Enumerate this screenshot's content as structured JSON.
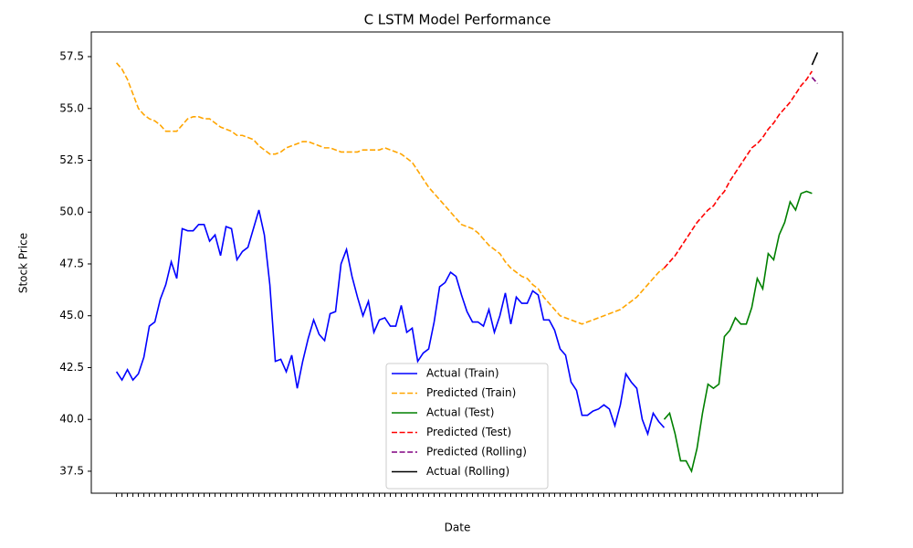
{
  "chart_data": {
    "type": "line",
    "title": "C LSTM Model Performance",
    "xlabel": "Date",
    "ylabel": "Stock Price",
    "legend": "lower center",
    "categories": [
      null,
      null,
      null,
      null,
      null,
      null,
      null,
      null,
      null,
      null,
      null,
      null,
      null,
      null,
      null,
      null,
      null,
      null,
      null,
      null,
      null,
      null,
      null,
      null,
      null,
      null,
      null,
      null,
      null,
      null,
      null,
      null,
      null,
      null,
      null,
      null,
      null,
      null,
      null,
      null,
      null,
      null,
      null,
      null,
      null,
      null,
      null,
      null,
      null,
      null,
      null,
      null,
      null,
      null,
      null,
      null,
      null,
      null,
      null,
      null,
      null,
      null,
      null,
      null,
      null,
      null,
      null,
      null,
      null,
      null,
      null,
      null,
      null,
      null,
      null,
      null,
      null,
      null,
      null,
      null,
      null,
      null,
      null,
      null,
      null,
      null,
      null,
      null,
      null,
      null,
      null,
      null,
      null,
      null,
      null,
      null,
      null,
      null,
      null,
      null,
      null,
      null,
      null,
      null,
      null,
      null,
      null,
      null,
      null,
      null,
      null,
      null,
      null,
      null,
      null,
      null,
      null,
      null,
      null,
      null,
      null,
      null,
      null,
      null,
      null,
      null,
      null,
      null,
      null
    ],
    "ylim": [
      36.44,
      58.69
    ],
    "yticks": [
      37.5,
      {
        "value": 40,
        "label": "40.0"
      },
      42.5,
      {
        "value": 45,
        "label": "45.0"
      },
      47.5,
      {
        "value": 50,
        "label": "50.0"
      },
      52.5,
      {
        "value": 55,
        "label": "55.0"
      },
      57.5
    ],
    "series": [
      {
        "name": "Actual (Train)",
        "color": "#0000ff",
        "linestyle": "solid",
        "values": [
          42.3,
          41.9,
          42.4,
          41.9,
          42.2,
          43.0,
          44.5,
          44.7,
          45.8,
          46.5,
          47.6,
          46.8,
          49.2,
          49.1,
          49.1,
          49.4,
          49.4,
          48.6,
          48.9,
          47.9,
          49.3,
          49.2,
          47.7,
          48.1,
          48.3,
          49.2,
          50.1,
          48.9,
          46.5,
          42.8,
          42.9,
          42.3,
          43.1,
          41.5,
          42.8,
          43.9,
          44.8,
          44.1,
          43.8,
          45.1,
          45.2,
          47.5,
          48.2,
          46.9,
          45.9,
          45.0,
          45.7,
          44.2,
          44.8,
          44.9,
          44.5,
          44.5,
          45.5,
          44.2,
          44.4,
          42.8,
          43.2,
          43.4,
          44.7,
          46.4,
          46.6,
          47.1,
          46.9,
          46.0,
          45.2,
          44.7,
          44.7,
          44.5,
          45.3,
          44.2,
          45.0,
          46.1,
          44.6,
          45.9,
          45.6,
          45.6,
          46.2,
          46.0,
          44.8,
          44.8,
          44.3,
          43.4,
          43.1,
          41.8,
          41.4,
          40.2,
          40.2,
          40.4,
          40.5,
          40.7,
          40.5,
          39.7,
          40.7,
          42.2,
          41.8,
          41.5,
          40.0,
          39.3,
          40.3,
          39.9,
          39.6,
          null,
          null,
          null,
          null,
          null,
          null,
          null,
          null,
          null,
          null,
          null,
          null,
          null,
          null,
          null,
          null,
          null,
          null,
          null,
          null,
          null,
          null,
          null,
          null,
          null,
          null,
          null,
          null
        ]
      },
      {
        "name": "Predicted (Train)",
        "color": "#ffa500",
        "linestyle": "dashed",
        "values": [
          57.2,
          56.9,
          56.4,
          55.7,
          55.0,
          54.7,
          54.5,
          54.4,
          54.2,
          53.9,
          53.9,
          53.9,
          54.2,
          54.5,
          54.6,
          54.6,
          54.5,
          54.5,
          54.3,
          54.1,
          54.0,
          53.9,
          53.7,
          53.7,
          53.6,
          53.5,
          53.2,
          53.0,
          52.8,
          52.8,
          52.9,
          53.1,
          53.2,
          53.3,
          53.4,
          53.4,
          53.3,
          53.2,
          53.1,
          53.1,
          53.0,
          52.9,
          52.9,
          52.9,
          52.9,
          53.0,
          53.0,
          53.0,
          53.0,
          53.1,
          53.0,
          52.9,
          52.8,
          52.6,
          52.4,
          52.0,
          51.6,
          51.2,
          50.9,
          50.6,
          50.3,
          50.0,
          49.7,
          49.4,
          49.3,
          49.2,
          49.0,
          48.7,
          48.4,
          48.2,
          48.0,
          47.6,
          47.3,
          47.1,
          46.9,
          46.8,
          46.5,
          46.3,
          45.9,
          45.6,
          45.3,
          45.0,
          44.9,
          44.8,
          44.7,
          44.6,
          44.7,
          44.8,
          44.9,
          45.0,
          45.1,
          45.2,
          45.3,
          45.5,
          45.7,
          45.9,
          46.2,
          46.5,
          46.8,
          47.1,
          47.3,
          null,
          null,
          null,
          null,
          null,
          null,
          null,
          null,
          null,
          null,
          null,
          null,
          null,
          null,
          null,
          null,
          null,
          null,
          null,
          null,
          null,
          null,
          null,
          null,
          null,
          null,
          null,
          null
        ]
      },
      {
        "name": "Actual (Test)",
        "color": "#008000",
        "linestyle": "solid",
        "values": [
          null,
          null,
          null,
          null,
          null,
          null,
          null,
          null,
          null,
          null,
          null,
          null,
          null,
          null,
          null,
          null,
          null,
          null,
          null,
          null,
          null,
          null,
          null,
          null,
          null,
          null,
          null,
          null,
          null,
          null,
          null,
          null,
          null,
          null,
          null,
          null,
          null,
          null,
          null,
          null,
          null,
          null,
          null,
          null,
          null,
          null,
          null,
          null,
          null,
          null,
          null,
          null,
          null,
          null,
          null,
          null,
          null,
          null,
          null,
          null,
          null,
          null,
          null,
          null,
          null,
          null,
          null,
          null,
          null,
          null,
          null,
          null,
          null,
          null,
          null,
          null,
          null,
          null,
          null,
          null,
          null,
          null,
          null,
          null,
          null,
          null,
          null,
          null,
          null,
          null,
          null,
          null,
          null,
          null,
          null,
          null,
          null,
          null,
          null,
          null,
          40.0,
          40.3,
          39.3,
          38.0,
          38.0,
          37.5,
          38.6,
          40.3,
          41.7,
          41.5,
          41.7,
          44.0,
          44.3,
          44.9,
          44.6,
          44.6,
          45.4,
          46.8,
          46.3,
          48.0,
          47.7,
          48.9,
          49.5,
          50.5,
          50.1,
          50.9,
          51.0,
          50.9,
          null
        ]
      },
      {
        "name": "Predicted (Test)",
        "color": "#ff0000",
        "linestyle": "dashed",
        "values": [
          null,
          null,
          null,
          null,
          null,
          null,
          null,
          null,
          null,
          null,
          null,
          null,
          null,
          null,
          null,
          null,
          null,
          null,
          null,
          null,
          null,
          null,
          null,
          null,
          null,
          null,
          null,
          null,
          null,
          null,
          null,
          null,
          null,
          null,
          null,
          null,
          null,
          null,
          null,
          null,
          null,
          null,
          null,
          null,
          null,
          null,
          null,
          null,
          null,
          null,
          null,
          null,
          null,
          null,
          null,
          null,
          null,
          null,
          null,
          null,
          null,
          null,
          null,
          null,
          null,
          null,
          null,
          null,
          null,
          null,
          null,
          null,
          null,
          null,
          null,
          null,
          null,
          null,
          null,
          null,
          null,
          null,
          null,
          null,
          null,
          null,
          null,
          null,
          null,
          null,
          null,
          null,
          null,
          null,
          null,
          null,
          null,
          null,
          null,
          null,
          47.3,
          47.6,
          47.9,
          48.3,
          48.7,
          49.1,
          49.5,
          49.8,
          50.1,
          50.3,
          50.7,
          51.0,
          51.5,
          51.9,
          52.3,
          52.7,
          53.1,
          53.3,
          53.6,
          54.0,
          54.3,
          54.7,
          55.0,
          55.3,
          55.7,
          56.1,
          56.4,
          56.8,
          null
        ]
      },
      {
        "name": "Predicted (Rolling)",
        "color": "#800080",
        "linestyle": "dashed",
        "values": [
          null,
          null,
          null,
          null,
          null,
          null,
          null,
          null,
          null,
          null,
          null,
          null,
          null,
          null,
          null,
          null,
          null,
          null,
          null,
          null,
          null,
          null,
          null,
          null,
          null,
          null,
          null,
          null,
          null,
          null,
          null,
          null,
          null,
          null,
          null,
          null,
          null,
          null,
          null,
          null,
          null,
          null,
          null,
          null,
          null,
          null,
          null,
          null,
          null,
          null,
          null,
          null,
          null,
          null,
          null,
          null,
          null,
          null,
          null,
          null,
          null,
          null,
          null,
          null,
          null,
          null,
          null,
          null,
          null,
          null,
          null,
          null,
          null,
          null,
          null,
          null,
          null,
          null,
          null,
          null,
          null,
          null,
          null,
          null,
          null,
          null,
          null,
          null,
          null,
          null,
          null,
          null,
          null,
          null,
          null,
          null,
          null,
          null,
          null,
          null,
          null,
          null,
          null,
          null,
          null,
          null,
          null,
          null,
          null,
          null,
          null,
          null,
          null,
          null,
          null,
          null,
          null,
          null,
          null,
          null,
          null,
          null,
          null,
          null,
          null,
          null,
          null,
          56.5,
          56.2
        ]
      },
      {
        "name": "Actual (Rolling)",
        "color": "#000000",
        "linestyle": "solid",
        "values": [
          null,
          null,
          null,
          null,
          null,
          null,
          null,
          null,
          null,
          null,
          null,
          null,
          null,
          null,
          null,
          null,
          null,
          null,
          null,
          null,
          null,
          null,
          null,
          null,
          null,
          null,
          null,
          null,
          null,
          null,
          null,
          null,
          null,
          null,
          null,
          null,
          null,
          null,
          null,
          null,
          null,
          null,
          null,
          null,
          null,
          null,
          null,
          null,
          null,
          null,
          null,
          null,
          null,
          null,
          null,
          null,
          null,
          null,
          null,
          null,
          null,
          null,
          null,
          null,
          null,
          null,
          null,
          null,
          null,
          null,
          null,
          null,
          null,
          null,
          null,
          null,
          null,
          null,
          null,
          null,
          null,
          null,
          null,
          null,
          null,
          null,
          null,
          null,
          null,
          null,
          null,
          null,
          null,
          null,
          null,
          null,
          null,
          null,
          null,
          null,
          null,
          null,
          null,
          null,
          null,
          null,
          null,
          null,
          null,
          null,
          null,
          null,
          null,
          null,
          null,
          null,
          null,
          null,
          null,
          null,
          null,
          null,
          null,
          null,
          null,
          null,
          null,
          57.1,
          57.7
        ]
      }
    ]
  }
}
